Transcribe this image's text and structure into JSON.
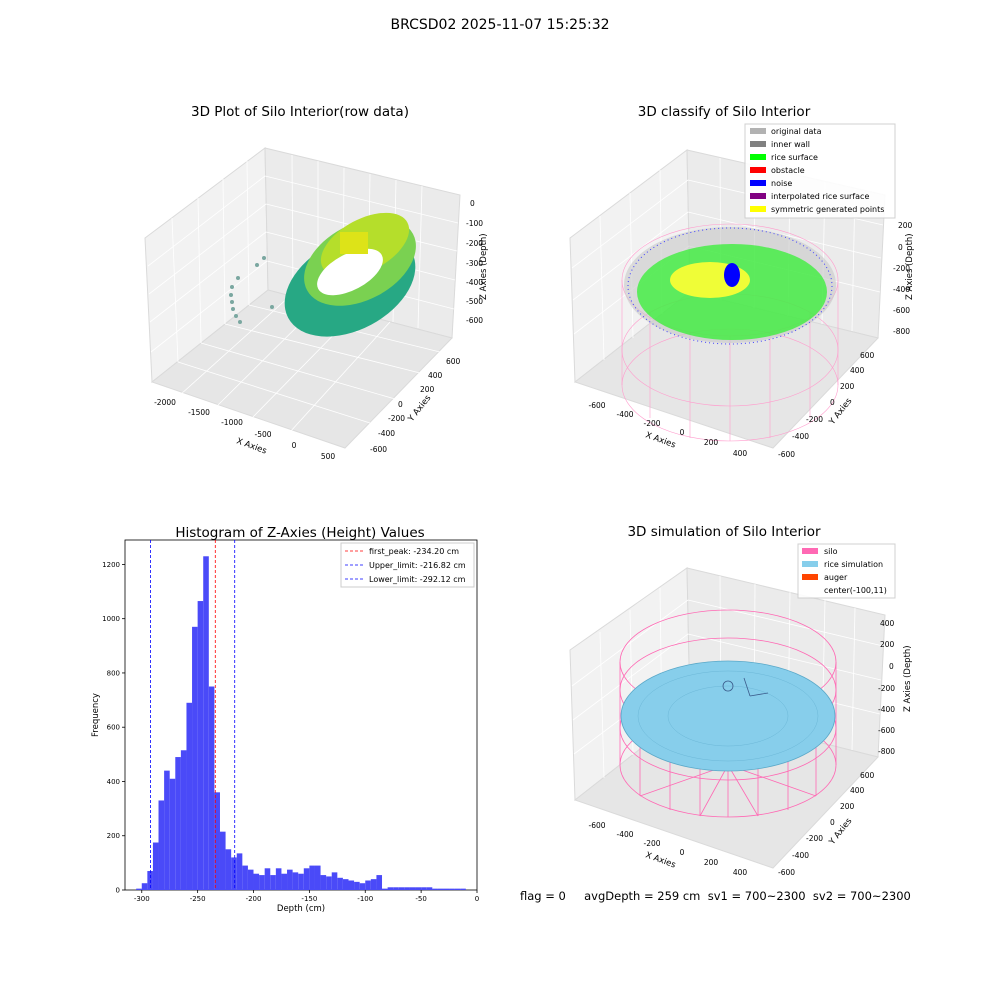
{
  "figure": {
    "suptitle": "BRCSD02 2025-11-07 15:25:32",
    "footer": "flag = 0     avgDepth = 259 cm  sv1 = 700~2300  sv2 = 700~2300"
  },
  "chart_data": [
    {
      "type": "scatter",
      "projection": "3d",
      "title": "3D Plot of Silo Interior(row data)",
      "xlabel": "X Axies",
      "ylabel": "Y Axies",
      "zlabel": "Z Axies (Depth)",
      "x_ticks": [
        "-2000",
        "-1500",
        "-1000",
        "-500",
        "0",
        "500"
      ],
      "y_ticks": [
        "-600",
        "-400",
        "-200",
        "0",
        "200",
        "400",
        "600"
      ],
      "z_ticks": [
        "0",
        "-100",
        "-200",
        "-300",
        "-400",
        "-500",
        "-600"
      ],
      "xlim": [
        -2200,
        550
      ],
      "ylim": [
        -700,
        700
      ],
      "zlim": [
        -700,
        0
      ],
      "colormap": "viridis",
      "outlier_points": [
        {
          "x": -2000,
          "y": -200,
          "z": -400
        },
        {
          "x": -2000,
          "y": -150,
          "z": -500
        },
        {
          "x": -2000,
          "y": -100,
          "z": -550
        },
        {
          "x": -1900,
          "y": 0,
          "z": -500
        },
        {
          "x": -1800,
          "y": 200,
          "z": -450
        }
      ]
    },
    {
      "type": "scatter",
      "projection": "3d",
      "title": "3D classify of Silo Interior",
      "xlabel": "X Axies",
      "ylabel": "Y Axies",
      "zlabel": "Z Axies (Depth)",
      "x_ticks": [
        "-600",
        "-400",
        "-200",
        "0",
        "200",
        "400"
      ],
      "y_ticks": [
        "-600",
        "-400",
        "-200",
        "0",
        "200",
        "400",
        "600"
      ],
      "z_ticks": [
        "200",
        "0",
        "-200",
        "-400",
        "-600",
        "-800"
      ],
      "legend_location": "upper right",
      "legend": [
        {
          "label": "original data",
          "color": "#b2b2b2"
        },
        {
          "label": "inner wall",
          "color": "#808080"
        },
        {
          "label": "rice surface",
          "color": "#00ff00"
        },
        {
          "label": "obstacle",
          "color": "#ff0000"
        },
        {
          "label": "noise",
          "color": "#0000ff"
        },
        {
          "label": "interpolated rice surface",
          "color": "#800080"
        },
        {
          "label": "symmetric generated points",
          "color": "#ffff00"
        }
      ]
    },
    {
      "type": "bar",
      "title": "Histogram of Z-Axies (Height) Values",
      "xlabel": "Depth (cm)",
      "ylabel": "Frequency",
      "xlim": [
        -315,
        0
      ],
      "ylim": [
        0,
        1290
      ],
      "x_ticks": [
        -300,
        -250,
        -200,
        -150,
        -100,
        -50,
        0
      ],
      "y_ticks": [
        0,
        200,
        400,
        600,
        800,
        1000,
        1200
      ],
      "bar_color": "#4a4af8",
      "bin_width": 5,
      "bin_left_edges": [
        -305,
        -300,
        -295,
        -290,
        -285,
        -280,
        -275,
        -270,
        -265,
        -260,
        -255,
        -250,
        -245,
        -240,
        -235,
        -230,
        -225,
        -220,
        -215,
        -210,
        -205,
        -200,
        -195,
        -190,
        -185,
        -180,
        -175,
        -170,
        -165,
        -160,
        -155,
        -150,
        -145,
        -140,
        -135,
        -130,
        -125,
        -120,
        -115,
        -110,
        -105,
        -100,
        -95,
        -90,
        -85,
        -80,
        -75,
        -70,
        -65,
        -60,
        -55,
        -50,
        -45,
        -40,
        -35,
        -30,
        -25,
        -20,
        -15
      ],
      "values": [
        5,
        25,
        70,
        175,
        330,
        440,
        410,
        490,
        515,
        690,
        970,
        1065,
        1230,
        750,
        360,
        215,
        150,
        120,
        135,
        90,
        75,
        60,
        55,
        80,
        55,
        80,
        60,
        75,
        65,
        60,
        80,
        90,
        90,
        55,
        50,
        65,
        45,
        40,
        35,
        30,
        25,
        35,
        40,
        55,
        5,
        10,
        10,
        10,
        10,
        10,
        10,
        10,
        10,
        5,
        5,
        5,
        5,
        5,
        5
      ],
      "legend_location": "upper right",
      "vlines": [
        {
          "label": "first_peak: -234.20 cm",
          "x": -234.2,
          "color": "#ff0000"
        },
        {
          "label": "Upper_limit: -216.82 cm",
          "x": -216.82,
          "color": "#0000ff"
        },
        {
          "label": "Lower_limit: -292.12 cm",
          "x": -292.12,
          "color": "#0000ff"
        }
      ]
    },
    {
      "type": "scatter",
      "projection": "3d",
      "title": "3D simulation of Silo Interior",
      "xlabel": "X Axies",
      "ylabel": "Y Axies",
      "zlabel": "Z Axies (Depth)",
      "x_ticks": [
        "-600",
        "-400",
        "-200",
        "0",
        "200",
        "400"
      ],
      "y_ticks": [
        "-600",
        "-400",
        "-200",
        "0",
        "200",
        "400",
        "600"
      ],
      "z_ticks": [
        "400",
        "200",
        "0",
        "-200",
        "-400",
        "-600",
        "-800"
      ],
      "legend_location": "upper right",
      "legend": [
        {
          "label": "silo",
          "color": "#ff69b4"
        },
        {
          "label": "rice simulation",
          "color": "#87ceeb"
        },
        {
          "label": "auger",
          "color": "#ff4500"
        },
        {
          "label": "center(-100,11)",
          "color": ""
        }
      ]
    }
  ]
}
